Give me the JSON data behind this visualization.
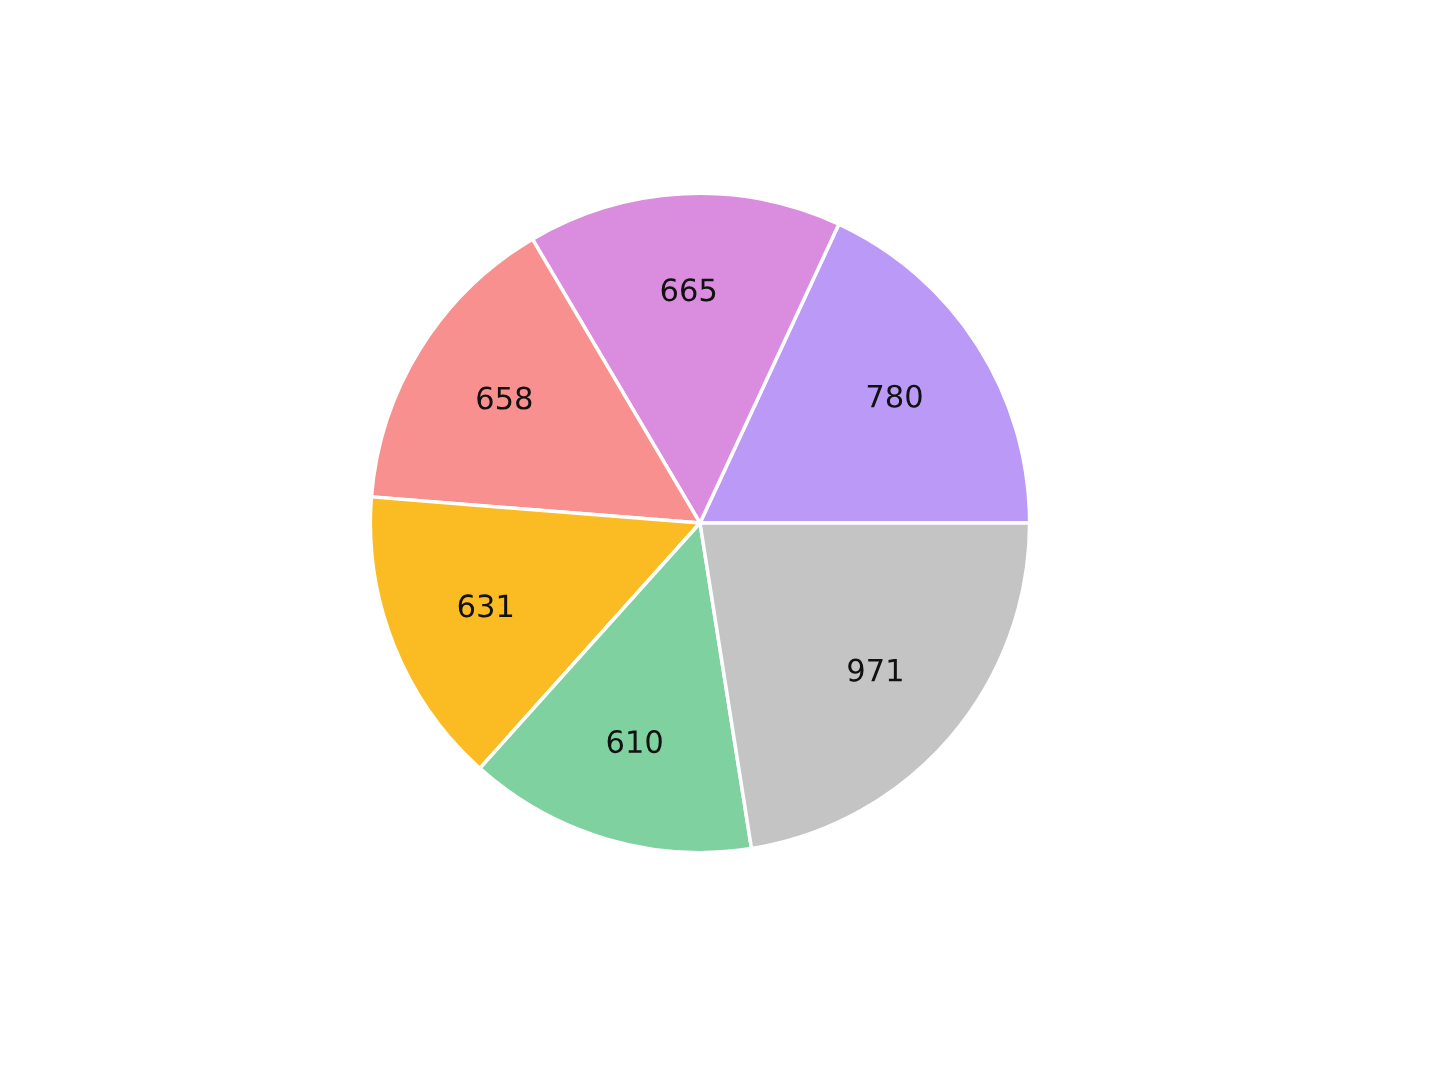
{
  "chart_data": {
    "type": "pie",
    "categories": [
      null,
      null,
      null,
      null,
      null,
      null
    ],
    "values": [
      780,
      665,
      658,
      631,
      610,
      971
    ],
    "colors": [
      "#bb99f7",
      "#da8cde",
      "#f89090",
      "#fbbb22",
      "#7fd1a0",
      "#c4c4c4"
    ],
    "data_labels": true
  }
}
